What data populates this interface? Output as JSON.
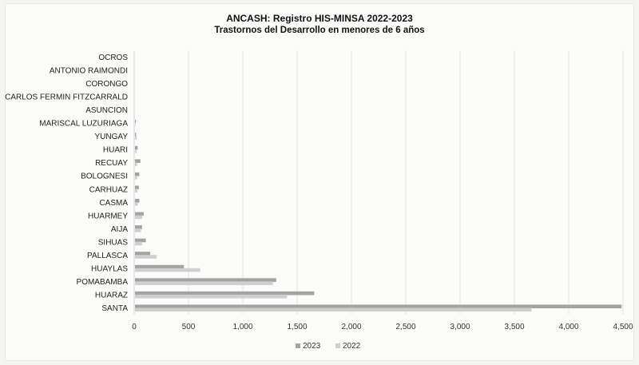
{
  "chart_data": {
    "type": "bar",
    "orientation": "horizontal",
    "title": "ANCASH: Registro HIS-MINSA 2022-2023",
    "subtitle": "Trastornos del Desarrollo en menores de 6 años",
    "categories": [
      "OCROS",
      "ANTONIO RAIMONDI",
      "CORONGO",
      "CARLOS FERMIN FITZCARRALD",
      "ASUNCION",
      "MARISCAL LUZURIAGA",
      "YUNGAY",
      "HUARI",
      "RECUAY",
      "BOLOGNESI",
      "CARHUAZ",
      "CASMA",
      "HUARMEY",
      "AIJA",
      "SIHUAS",
      "PALLASCA",
      "HUAYLAS",
      "POMABAMBA",
      "HUARAZ",
      "SANTA"
    ],
    "series": [
      {
        "name": "2023",
        "color": "#a3a3a3",
        "values": [
          0,
          0,
          0,
          0,
          0,
          8,
          10,
          25,
          50,
          40,
          35,
          40,
          80,
          65,
          100,
          140,
          450,
          1300,
          1650,
          4480
        ]
      },
      {
        "name": "2022",
        "color": "#cfcfcf",
        "values": [
          0,
          0,
          0,
          0,
          0,
          5,
          15,
          15,
          20,
          20,
          20,
          25,
          65,
          55,
          65,
          200,
          600,
          1270,
          1400,
          3650
        ]
      }
    ],
    "xlim": [
      0,
      4500
    ],
    "xticks": [
      "0",
      "500",
      "1,000",
      "1,500",
      "2,000",
      "2,500",
      "3,000",
      "3,500",
      "4,000",
      "4,500"
    ],
    "grid": true,
    "legend": "bottom"
  }
}
